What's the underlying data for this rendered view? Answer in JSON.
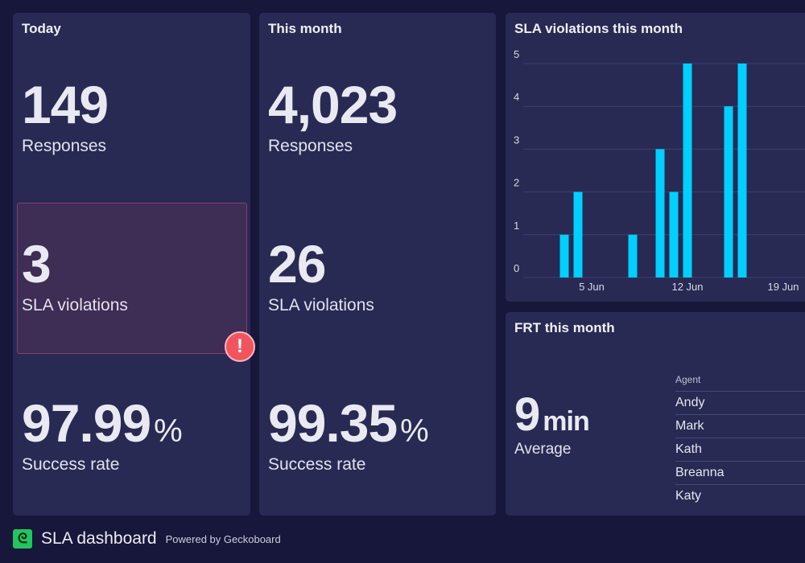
{
  "today": {
    "title": "Today",
    "responses": "149",
    "responses_label": "Responses",
    "violations": "3",
    "violations_label": "SLA violations",
    "success": "97.99",
    "success_unit": "%",
    "success_label": "Success rate"
  },
  "month": {
    "title": "This month",
    "responses": "4,023",
    "responses_label": "Responses",
    "violations": "26",
    "violations_label": "SLA violations",
    "success": "99.35",
    "success_unit": "%",
    "success_label": "Success rate"
  },
  "alert_icon": "exclamation-icon",
  "chart_data": {
    "type": "bar",
    "title": "SLA violations this month",
    "categories": [
      "3 Jun",
      "4 Jun",
      "8 Jun",
      "10 Jun",
      "11 Jun",
      "12 Jun",
      "15 Jun",
      "16 Jun"
    ],
    "values": [
      1,
      2,
      1,
      3,
      2,
      5,
      4,
      5
    ],
    "x_ticks": [
      "5 Jun",
      "12 Jun",
      "19 Jun"
    ],
    "y_ticks": [
      0,
      1,
      2,
      3,
      4,
      5
    ],
    "ylim": [
      0,
      5
    ],
    "grid": true,
    "bar_color": "#00cfff"
  },
  "frt": {
    "title": "FRT this month",
    "value": "9",
    "unit": "min",
    "label": "Average",
    "agent_header": "Agent",
    "agents": [
      "Andy",
      "Mark",
      "Kath",
      "Breanna",
      "Katy"
    ]
  },
  "footer": {
    "title": "SLA dashboard",
    "powered": "Powered by Geckoboard",
    "logo_color": "#22c55e"
  }
}
